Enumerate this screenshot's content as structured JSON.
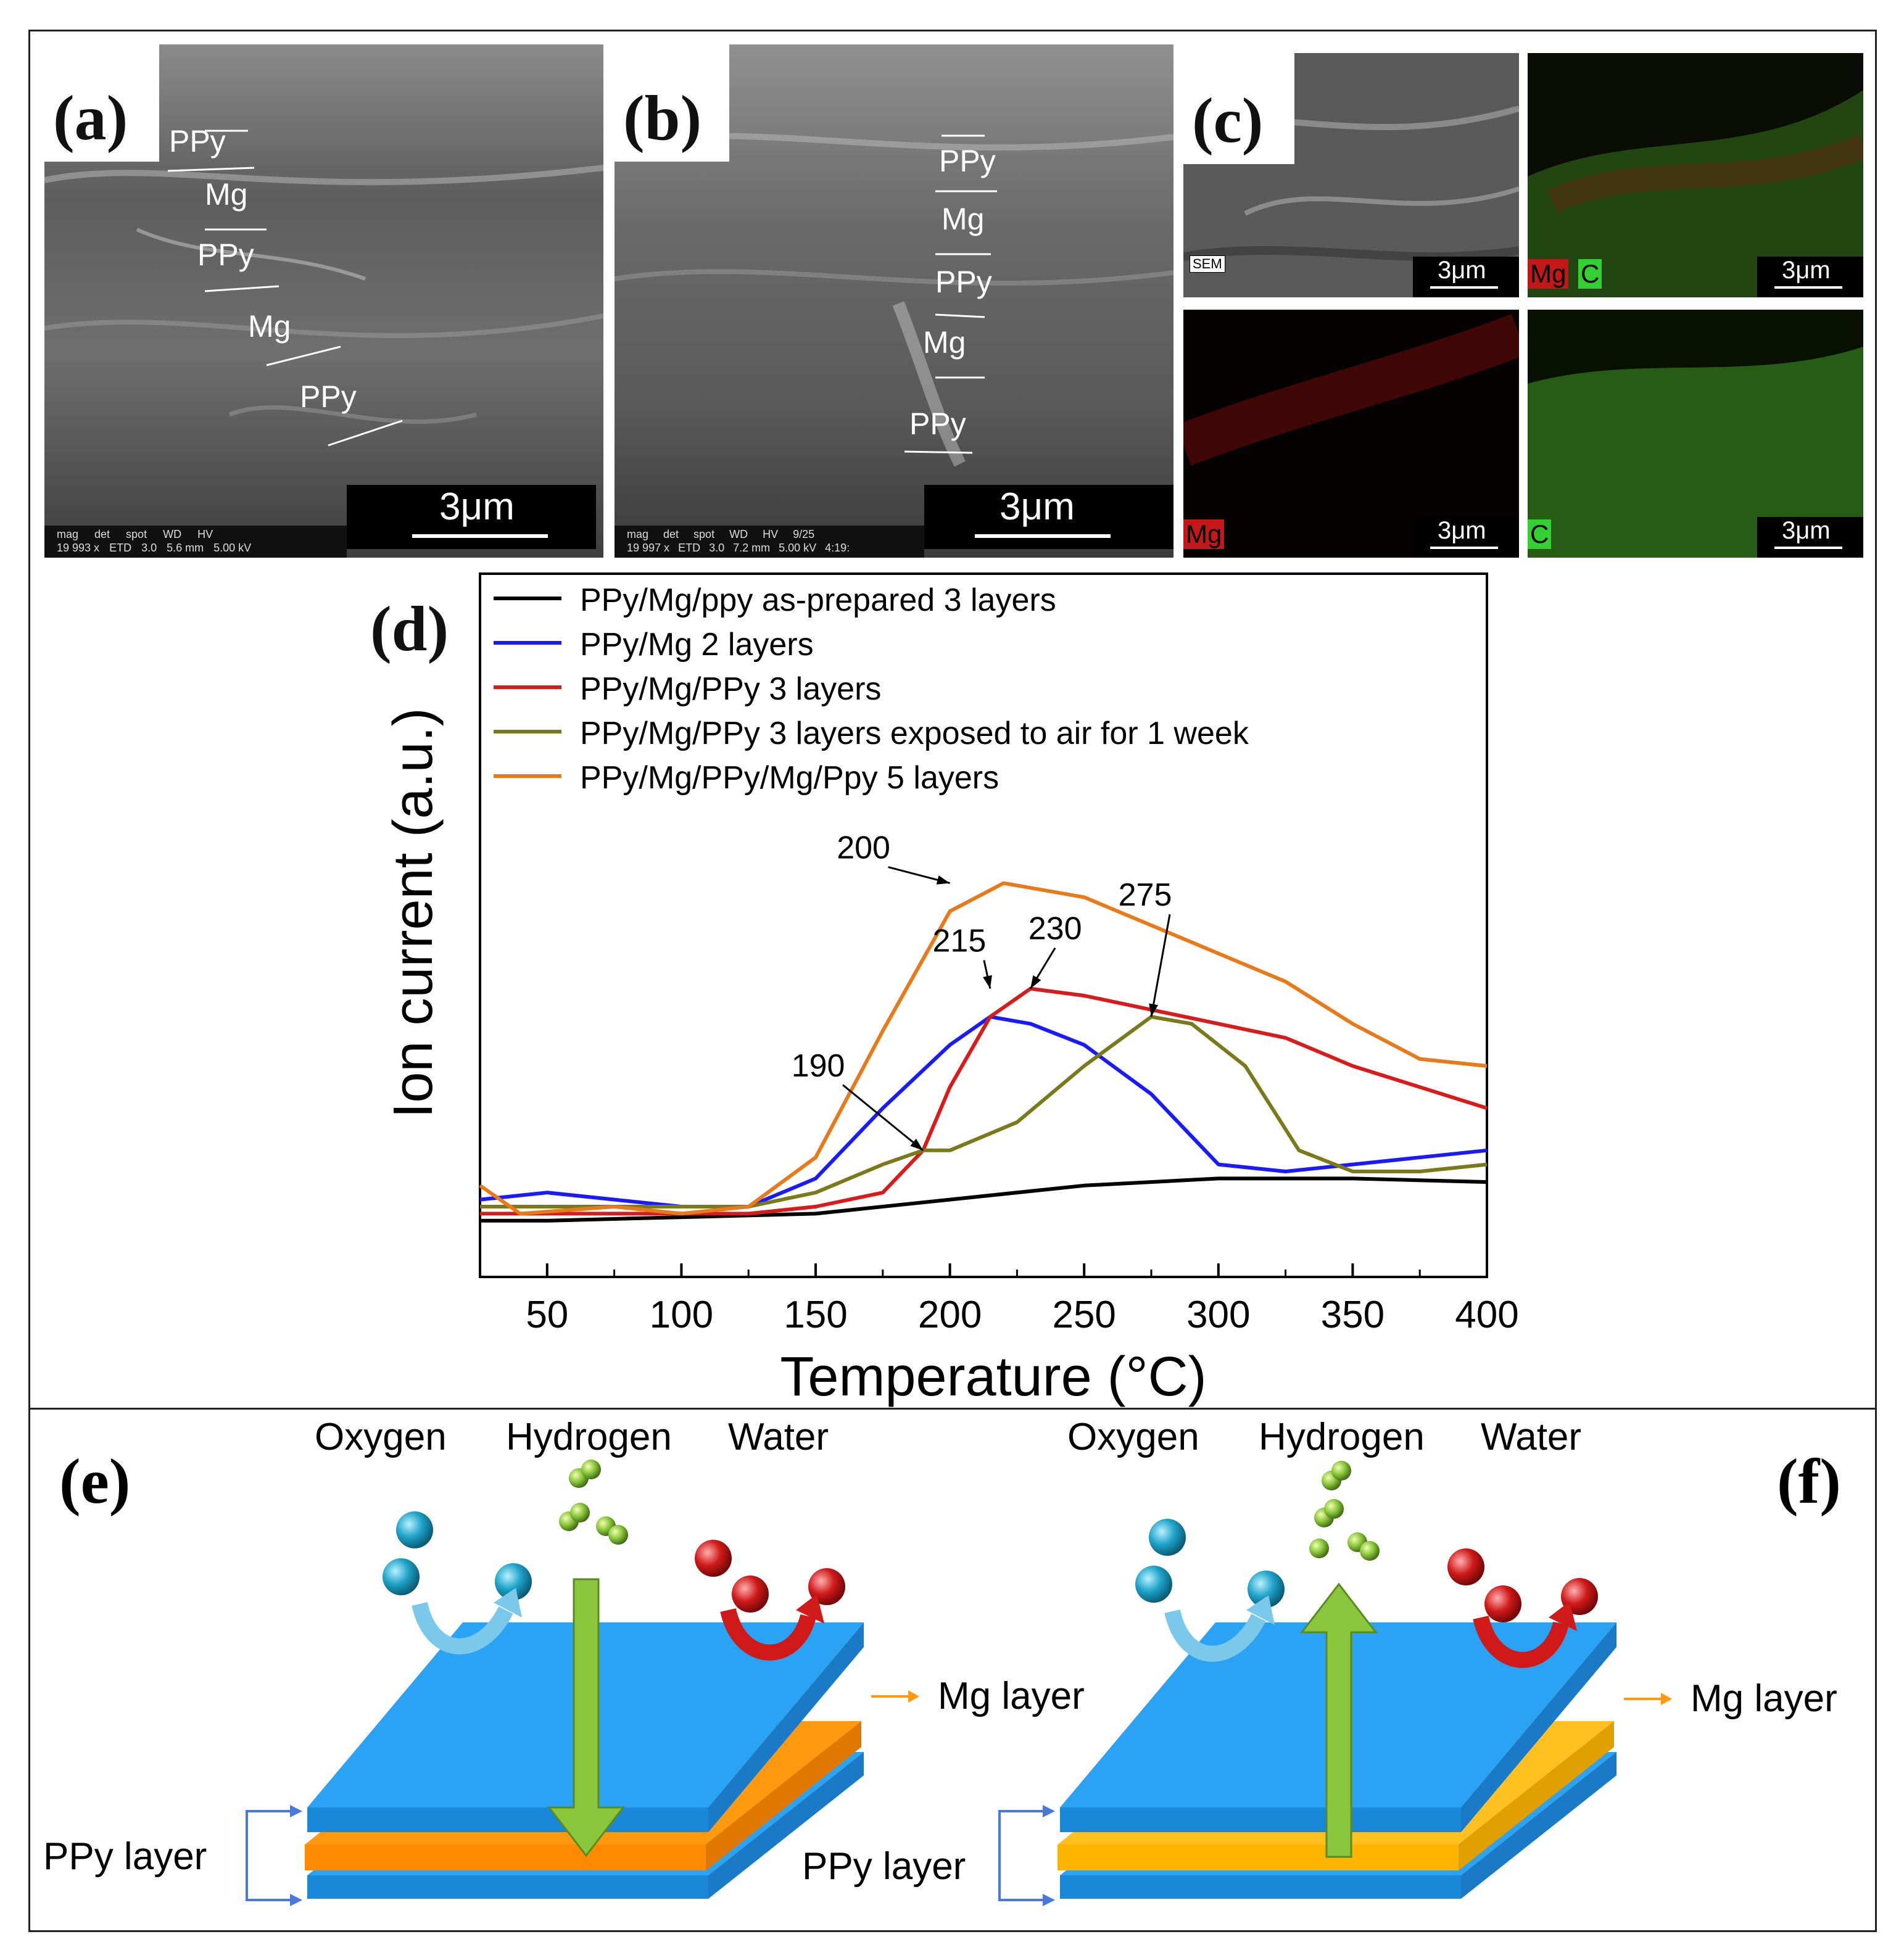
{
  "panels": {
    "a": {
      "letter": "(a)",
      "layers": [
        "PPy",
        "Mg",
        "PPy",
        "Mg",
        "PPy"
      ],
      "scale": "3μm",
      "info_labels": [
        "mag",
        "det",
        "spot",
        "WD",
        "HV"
      ],
      "info_values": [
        "19 993 x",
        "ETD",
        "3.0",
        "5.6 mm",
        "5.00 kV"
      ]
    },
    "b": {
      "letter": "(b)",
      "layers": [
        "PPy",
        "Mg",
        "PPy",
        "Mg",
        "PPy"
      ],
      "scale": "3μm",
      "info_labels": [
        "mag",
        "det",
        "spot",
        "WD",
        "HV",
        "9/25"
      ],
      "info_values": [
        "19 997 x",
        "ETD",
        "3.0",
        "7.2 mm",
        "5.00 kV",
        "4:19:"
      ]
    },
    "c": {
      "letter": "(c)",
      "sem_tag": "SEM",
      "map_tags": {
        "mg": "Mg",
        "c": "C"
      },
      "scale": "3μm"
    }
  },
  "chart_data": {
    "type": "line",
    "panel_letter": "(d)",
    "xlabel": "Temperature (°C)",
    "ylabel": "Ion current (a.u.)",
    "xlim": [
      25,
      400
    ],
    "ylim": [
      0,
      100
    ],
    "xticks": [
      50,
      100,
      150,
      200,
      250,
      300,
      350,
      400
    ],
    "legend_position": "top-left",
    "grid": false,
    "series": [
      {
        "name": "PPy/Mg/ppy as-prepared 3 layers",
        "color": "#000000",
        "points": [
          [
            25,
            8
          ],
          [
            50,
            8
          ],
          [
            100,
            8.5
          ],
          [
            150,
            9
          ],
          [
            200,
            11
          ],
          [
            250,
            13
          ],
          [
            300,
            14
          ],
          [
            350,
            14
          ],
          [
            400,
            13.5
          ]
        ]
      },
      {
        "name": "PPy/Mg 2 layers",
        "color": "#1a1aff",
        "points": [
          [
            25,
            11
          ],
          [
            50,
            12
          ],
          [
            75,
            11
          ],
          [
            100,
            10
          ],
          [
            125,
            10
          ],
          [
            150,
            14
          ],
          [
            175,
            24
          ],
          [
            200,
            33
          ],
          [
            215,
            37
          ],
          [
            230,
            36
          ],
          [
            250,
            33
          ],
          [
            275,
            26
          ],
          [
            290,
            20
          ],
          [
            300,
            16
          ],
          [
            325,
            15
          ],
          [
            350,
            16
          ],
          [
            375,
            17
          ],
          [
            400,
            18
          ]
        ]
      },
      {
        "name": "PPy/Mg/PPy 3 layers",
        "color": "#d81b1b",
        "points": [
          [
            25,
            9
          ],
          [
            50,
            9
          ],
          [
            75,
            9
          ],
          [
            100,
            9
          ],
          [
            125,
            9
          ],
          [
            150,
            10
          ],
          [
            175,
            12
          ],
          [
            190,
            18
          ],
          [
            200,
            27
          ],
          [
            215,
            37
          ],
          [
            230,
            41
          ],
          [
            250,
            40
          ],
          [
            275,
            38
          ],
          [
            300,
            36
          ],
          [
            325,
            34
          ],
          [
            350,
            30
          ],
          [
            375,
            27
          ],
          [
            400,
            24
          ]
        ]
      },
      {
        "name": "PPy/Mg/PPy 3 layers exposed to air for 1 week",
        "color": "#7a7a1a",
        "points": [
          [
            25,
            10
          ],
          [
            50,
            10
          ],
          [
            75,
            10
          ],
          [
            100,
            10
          ],
          [
            125,
            10
          ],
          [
            150,
            12
          ],
          [
            175,
            16
          ],
          [
            190,
            18
          ],
          [
            200,
            18
          ],
          [
            225,
            22
          ],
          [
            250,
            30
          ],
          [
            275,
            37
          ],
          [
            290,
            36
          ],
          [
            310,
            30
          ],
          [
            330,
            18
          ],
          [
            350,
            15
          ],
          [
            375,
            15
          ],
          [
            400,
            16
          ]
        ]
      },
      {
        "name": "PPy/Mg/PPy/Mg/Ppy 5 layers",
        "color": "#e87a1a",
        "points": [
          [
            25,
            13
          ],
          [
            40,
            9
          ],
          [
            75,
            10
          ],
          [
            100,
            9
          ],
          [
            125,
            10
          ],
          [
            150,
            17
          ],
          [
            175,
            35
          ],
          [
            200,
            52
          ],
          [
            220,
            56
          ],
          [
            250,
            54
          ],
          [
            275,
            50
          ],
          [
            300,
            46
          ],
          [
            325,
            42
          ],
          [
            350,
            36
          ],
          [
            375,
            31
          ],
          [
            400,
            30
          ]
        ]
      }
    ],
    "annotations": [
      {
        "text": "200",
        "x": 200,
        "y": 56
      },
      {
        "text": "215",
        "x": 215,
        "y": 41
      },
      {
        "text": "230",
        "x": 230,
        "y": 41
      },
      {
        "text": "190",
        "x": 190,
        "y": 18
      },
      {
        "text": "275",
        "x": 275,
        "y": 37
      }
    ]
  },
  "diagrams": {
    "e": {
      "letter": "(e)",
      "oxygen": "Oxygen",
      "hydrogen": "Hydrogen",
      "water": "Water",
      "mg_layer": "Mg layer",
      "ppy_layer": "PPy layer"
    },
    "f": {
      "letter": "(f)",
      "oxygen": "Oxygen",
      "hydrogen": "Hydrogen",
      "water": "Water",
      "mg_layer": "Mg layer",
      "ppy_layer": "PPy layer"
    }
  },
  "colors": {
    "ppy_layer": "#2aa3f5",
    "mg_layer_e": "#ff9a10",
    "mg_layer_f": "#ffc020",
    "hydrogen_arrow": "#8ac63c",
    "oxygen_ball": "#1fa3c8",
    "water_ball": "#d01a1a"
  }
}
